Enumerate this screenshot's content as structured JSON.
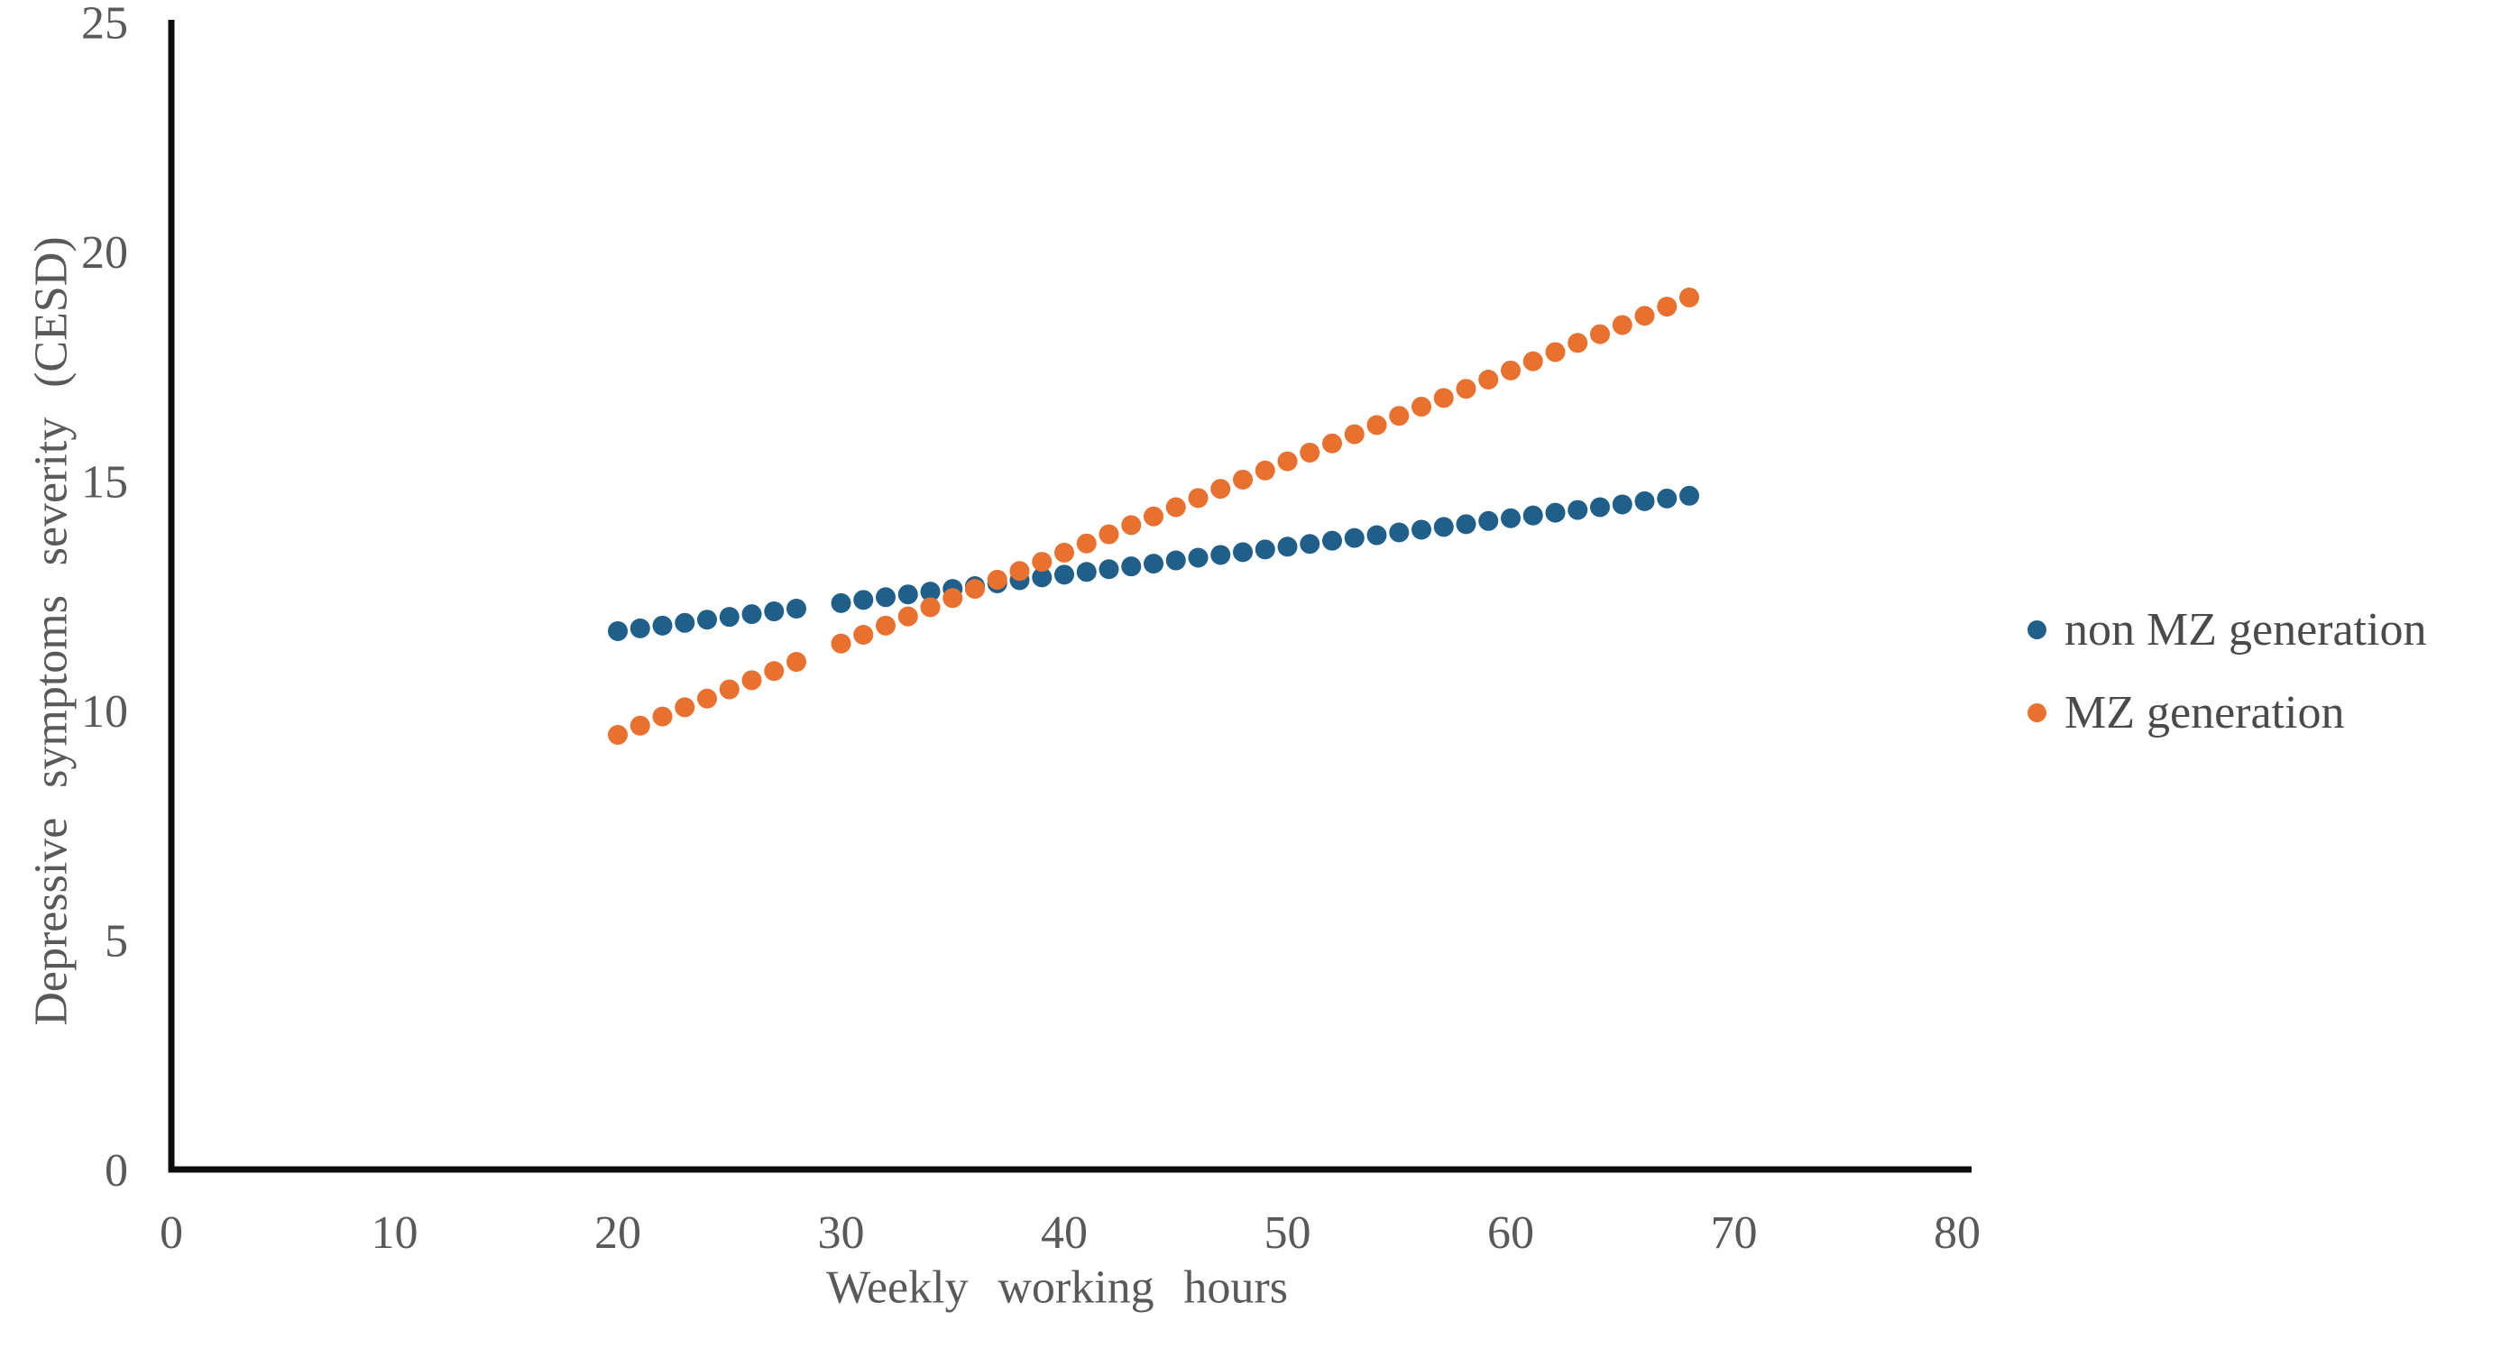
{
  "figure": {
    "background": "#ffffff"
  },
  "chart_data": {
    "type": "scatter",
    "title": "",
    "xlabel": "Weekly working hours",
    "ylabel": "Depressive symptoms severity (CESD)",
    "xlim": [
      0,
      80
    ],
    "ylim": [
      0,
      25
    ],
    "x_ticks": [
      0,
      10,
      20,
      30,
      40,
      50,
      60,
      70,
      80
    ],
    "y_ticks": [
      0,
      5,
      10,
      15,
      20,
      25
    ],
    "grid": false,
    "legend_position": "right",
    "colors": {
      "axis_line": "#0d0d0d",
      "tick_text": "#595959",
      "legend_text": "#4a4a4a"
    },
    "x": [
      20,
      21,
      22,
      23,
      24,
      25,
      26,
      27,
      28,
      30,
      31,
      32,
      33,
      34,
      35,
      36,
      37,
      38,
      39,
      40,
      41,
      42,
      43,
      44,
      45,
      46,
      47,
      48,
      49,
      50,
      51,
      52,
      53,
      54,
      55,
      56,
      57,
      58,
      59,
      60,
      61,
      62,
      63,
      64,
      65,
      66,
      67,
      68
    ],
    "series": [
      {
        "name": "non MZ generation",
        "color": "#1F5F8A",
        "values": [
          11.73,
          11.79,
          11.85,
          11.91,
          11.98,
          12.04,
          12.1,
          12.16,
          12.22,
          12.34,
          12.41,
          12.47,
          12.53,
          12.59,
          12.65,
          12.71,
          12.77,
          12.84,
          12.9,
          12.96,
          13.02,
          13.08,
          13.14,
          13.2,
          13.27,
          13.33,
          13.39,
          13.45,
          13.51,
          13.57,
          13.63,
          13.7,
          13.76,
          13.82,
          13.88,
          13.94,
          14.0,
          14.06,
          14.13,
          14.19,
          14.25,
          14.31,
          14.37,
          14.43,
          14.49,
          14.56,
          14.62,
          14.68
        ]
      },
      {
        "name": "MZ generation",
        "color": "#E8712F",
        "values": [
          9.47,
          9.67,
          9.87,
          10.07,
          10.26,
          10.46,
          10.66,
          10.86,
          11.06,
          11.46,
          11.65,
          11.85,
          12.05,
          12.25,
          12.45,
          12.65,
          12.85,
          13.04,
          13.24,
          13.44,
          13.64,
          13.84,
          14.04,
          14.23,
          14.43,
          14.63,
          14.83,
          15.03,
          15.23,
          15.43,
          15.62,
          15.82,
          16.02,
          16.22,
          16.42,
          16.62,
          16.81,
          17.01,
          17.21,
          17.41,
          17.61,
          17.81,
          18.01,
          18.2,
          18.4,
          18.6,
          18.8,
          19.0
        ]
      }
    ]
  }
}
